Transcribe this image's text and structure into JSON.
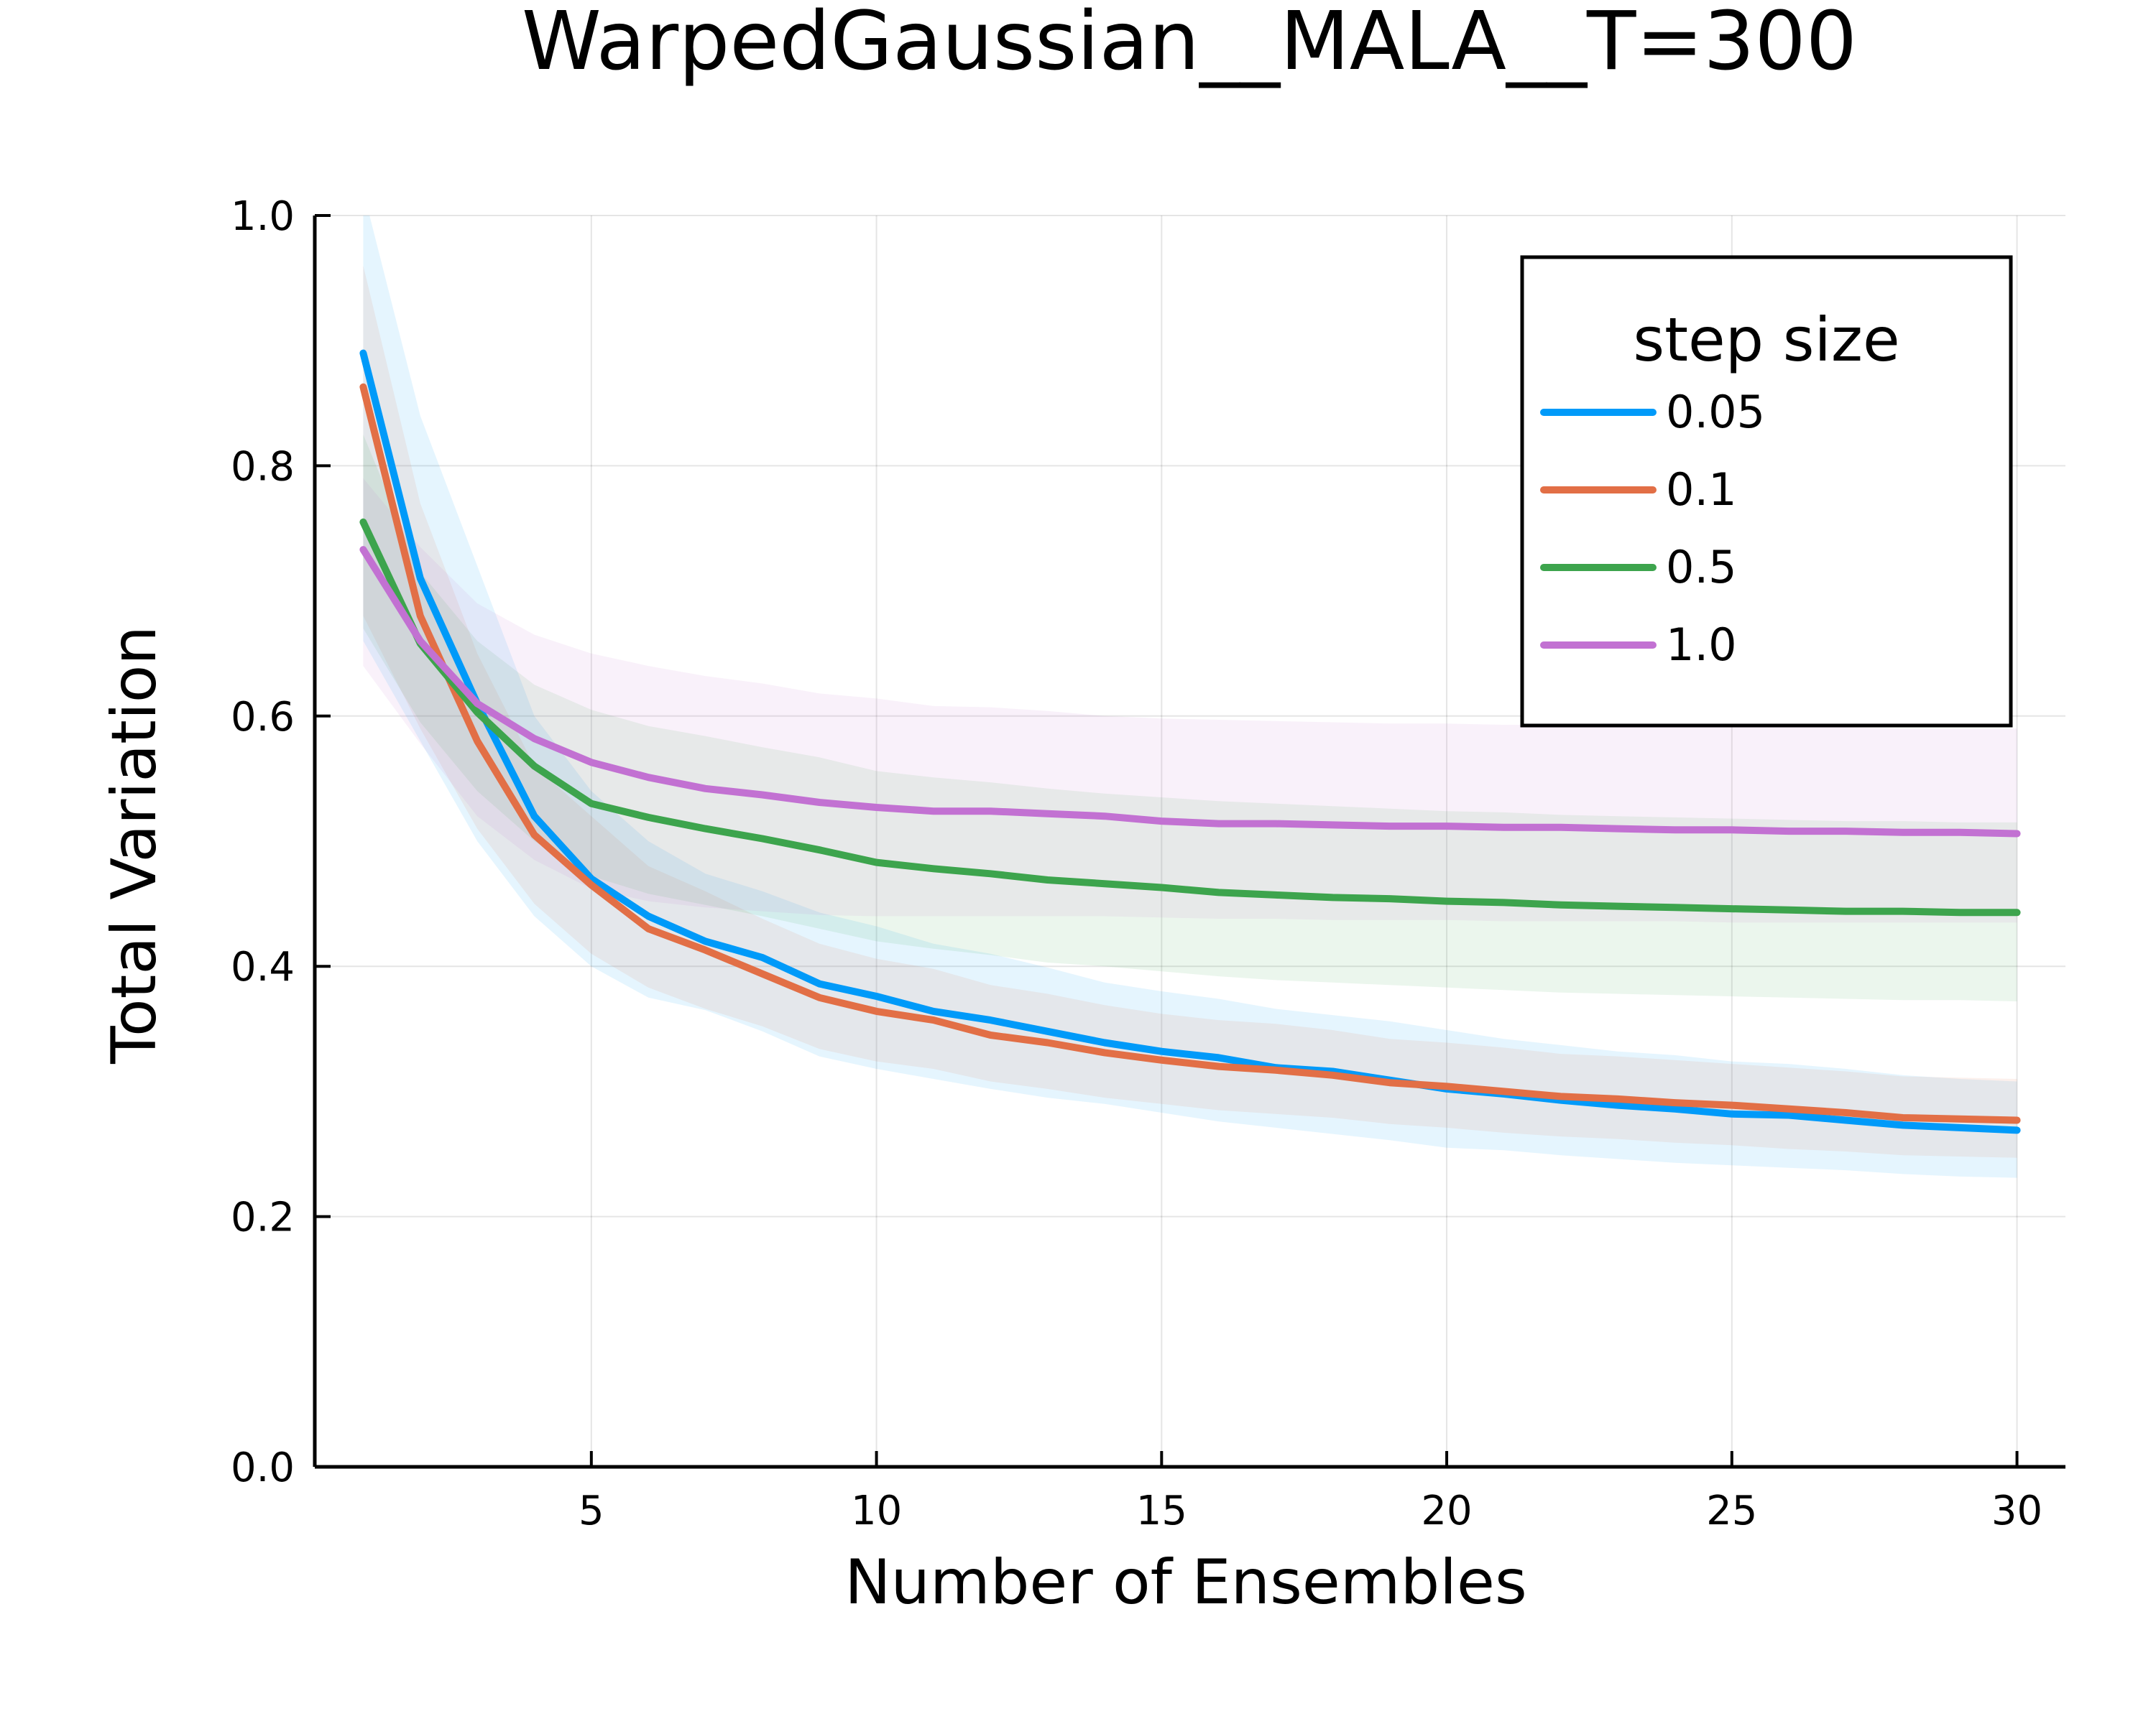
{
  "chart_data": {
    "type": "line",
    "title": "WarpedGaussian__MALA__T=300",
    "xlabel": "Number of Ensembles",
    "ylabel": "Total Variation",
    "xlim": [
      0.15,
      30.85
    ],
    "ylim": [
      0.0,
      1.0
    ],
    "xticks": [
      5,
      10,
      15,
      20,
      25,
      30
    ],
    "xtick_labels": [
      "5",
      "10",
      "15",
      "20",
      "25",
      "30"
    ],
    "yticks": [
      0.0,
      0.2,
      0.4,
      0.6,
      0.8,
      1.0
    ],
    "ytick_labels": [
      "0.0",
      "0.2",
      "0.4",
      "0.6",
      "0.8",
      "1.0"
    ],
    "grid": true,
    "legend": {
      "title": "step size",
      "position": "top-right"
    },
    "x": [
      1,
      2,
      3,
      4,
      5,
      6,
      7,
      8,
      9,
      10,
      11,
      12,
      13,
      14,
      15,
      16,
      17,
      18,
      19,
      20,
      21,
      22,
      23,
      24,
      25,
      26,
      27,
      28,
      29,
      30
    ],
    "series": [
      {
        "name": "0.05",
        "color": "#009af9",
        "values": [
          0.89,
          0.71,
          0.61,
          0.52,
          0.47,
          0.44,
          0.42,
          0.407,
          0.386,
          0.376,
          0.364,
          0.357,
          0.348,
          0.339,
          0.332,
          0.327,
          0.319,
          0.316,
          0.309,
          0.302,
          0.298,
          0.293,
          0.289,
          0.286,
          0.282,
          0.281,
          0.277,
          0.273,
          0.271,
          0.269
        ],
        "lower": [
          0.66,
          0.58,
          0.5,
          0.44,
          0.4,
          0.375,
          0.365,
          0.348,
          0.328,
          0.318,
          0.31,
          0.302,
          0.295,
          0.29,
          0.283,
          0.276,
          0.271,
          0.266,
          0.261,
          0.255,
          0.253,
          0.249,
          0.246,
          0.243,
          0.241,
          0.239,
          0.237,
          0.234,
          0.232,
          0.231
        ],
        "upper": [
          1.02,
          0.84,
          0.72,
          0.6,
          0.54,
          0.5,
          0.474,
          0.46,
          0.443,
          0.432,
          0.418,
          0.41,
          0.399,
          0.387,
          0.38,
          0.374,
          0.366,
          0.361,
          0.356,
          0.349,
          0.342,
          0.337,
          0.332,
          0.329,
          0.324,
          0.322,
          0.318,
          0.313,
          0.31,
          0.308
        ]
      },
      {
        "name": "0.1",
        "color": "#e26f46",
        "values": [
          0.863,
          0.68,
          0.58,
          0.505,
          0.465,
          0.43,
          0.413,
          0.394,
          0.375,
          0.364,
          0.357,
          0.345,
          0.339,
          0.331,
          0.325,
          0.32,
          0.317,
          0.313,
          0.307,
          0.304,
          0.3,
          0.296,
          0.294,
          0.291,
          0.289,
          0.286,
          0.283,
          0.279,
          0.278,
          0.277
        ],
        "lower": [
          0.68,
          0.59,
          0.51,
          0.45,
          0.41,
          0.383,
          0.366,
          0.352,
          0.334,
          0.324,
          0.318,
          0.308,
          0.302,
          0.295,
          0.29,
          0.285,
          0.282,
          0.279,
          0.274,
          0.271,
          0.267,
          0.264,
          0.262,
          0.259,
          0.257,
          0.254,
          0.252,
          0.249,
          0.248,
          0.247
        ],
        "upper": [
          0.96,
          0.77,
          0.65,
          0.56,
          0.52,
          0.48,
          0.46,
          0.438,
          0.418,
          0.406,
          0.398,
          0.385,
          0.378,
          0.369,
          0.362,
          0.357,
          0.354,
          0.349,
          0.342,
          0.339,
          0.335,
          0.33,
          0.328,
          0.325,
          0.322,
          0.319,
          0.316,
          0.312,
          0.311,
          0.31
        ]
      },
      {
        "name": "0.5",
        "color": "#3da44d",
        "values": [
          0.755,
          0.658,
          0.603,
          0.56,
          0.53,
          0.519,
          0.51,
          0.502,
          0.493,
          0.483,
          0.478,
          0.474,
          0.469,
          0.466,
          0.463,
          0.459,
          0.457,
          0.455,
          0.454,
          0.452,
          0.451,
          0.449,
          0.448,
          0.447,
          0.446,
          0.445,
          0.444,
          0.444,
          0.443,
          0.443
        ],
        "lower": [
          0.67,
          0.595,
          0.54,
          0.5,
          0.472,
          0.458,
          0.449,
          0.44,
          0.43,
          0.42,
          0.414,
          0.409,
          0.403,
          0.4,
          0.396,
          0.392,
          0.389,
          0.387,
          0.385,
          0.383,
          0.381,
          0.379,
          0.378,
          0.377,
          0.376,
          0.375,
          0.374,
          0.373,
          0.373,
          0.372
        ],
        "upper": [
          0.825,
          0.715,
          0.66,
          0.625,
          0.605,
          0.592,
          0.584,
          0.575,
          0.567,
          0.556,
          0.551,
          0.547,
          0.542,
          0.538,
          0.535,
          0.532,
          0.53,
          0.528,
          0.526,
          0.524,
          0.523,
          0.521,
          0.52,
          0.519,
          0.518,
          0.517,
          0.516,
          0.516,
          0.515,
          0.515
        ]
      },
      {
        "name": "1.0",
        "color": "#c271d2",
        "values": [
          0.733,
          0.66,
          0.61,
          0.582,
          0.563,
          0.551,
          0.542,
          0.537,
          0.531,
          0.527,
          0.524,
          0.524,
          0.522,
          0.52,
          0.516,
          0.514,
          0.514,
          0.513,
          0.512,
          0.512,
          0.511,
          0.511,
          0.51,
          0.509,
          0.509,
          0.508,
          0.508,
          0.507,
          0.507,
          0.506
        ],
        "lower": [
          0.64,
          0.578,
          0.52,
          0.485,
          0.462,
          0.452,
          0.447,
          0.444,
          0.441,
          0.44,
          0.44,
          0.44,
          0.44,
          0.44,
          0.439,
          0.438,
          0.438,
          0.437,
          0.437,
          0.437,
          0.436,
          0.436,
          0.436,
          0.436,
          0.435,
          0.435,
          0.435,
          0.435,
          0.435,
          0.435
        ],
        "upper": [
          0.79,
          0.735,
          0.69,
          0.665,
          0.65,
          0.64,
          0.632,
          0.626,
          0.618,
          0.614,
          0.608,
          0.607,
          0.604,
          0.6,
          0.598,
          0.597,
          0.596,
          0.595,
          0.594,
          0.594,
          0.593,
          0.593,
          0.592,
          0.592,
          0.592,
          0.591,
          0.591,
          0.59,
          0.59,
          0.59
        ]
      }
    ]
  }
}
